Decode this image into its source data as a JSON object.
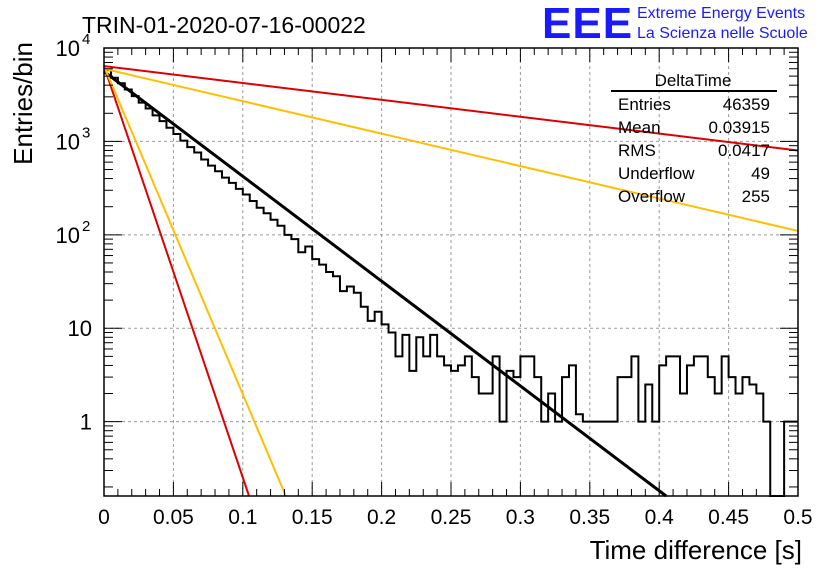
{
  "header": {
    "run_title": "TRIN-01-2020-07-16-00022",
    "logo_text": "EEE",
    "logo_line1": "Extreme Energy Events",
    "logo_line2": "La Scienza nelle Scuole"
  },
  "colors": {
    "logo_blue": "#1a1aff",
    "histogram": "#000000",
    "fit_black": "#000000",
    "fit_red": "#dd0000",
    "fit_yellow": "#ffbf00",
    "grid": "#9a9a9a"
  },
  "stats_box": {
    "title": "DeltaTime",
    "rows": [
      {
        "label": "Entries",
        "value": "46359"
      },
      {
        "label": "Mean",
        "value": "0.03915"
      },
      {
        "label": "RMS",
        "value": "0.0417"
      },
      {
        "label": "Underflow",
        "value": "49"
      },
      {
        "label": "Overflow",
        "value": "255"
      }
    ]
  },
  "chart_data": {
    "type": "line",
    "xlabel": "Time difference [s]",
    "ylabel": "Entries/bin",
    "xlim": [
      0,
      0.5
    ],
    "ylim": [
      0.16,
      10000
    ],
    "yscale": "log",
    "grid": true,
    "x_ticks": [
      "0",
      "0.05",
      "0.1",
      "0.15",
      "0.2",
      "0.25",
      "0.3",
      "0.35",
      "0.4",
      "0.45",
      "0.5"
    ],
    "y_ticks": [
      {
        "value": 1,
        "label": "1",
        "sup": ""
      },
      {
        "value": 10,
        "label": "10",
        "sup": ""
      },
      {
        "value": 100,
        "label": "10",
        "sup": "2"
      },
      {
        "value": 1000,
        "label": "10",
        "sup": "3"
      },
      {
        "value": 10000,
        "label": "10",
        "sup": "4"
      }
    ],
    "histogram": {
      "bin_width": 0.005,
      "x_start": 0,
      "counts": [
        5800,
        4800,
        4200,
        3600,
        3050,
        2600,
        2250,
        1900,
        1650,
        1400,
        1200,
        1020,
        870,
        760,
        640,
        550,
        480,
        410,
        360,
        310,
        270,
        230,
        195,
        170,
        145,
        125,
        100,
        90,
        65,
        75,
        55,
        48,
        40,
        36,
        25,
        28,
        24,
        17,
        12,
        15,
        11,
        9,
        5,
        8.5,
        3.5,
        8,
        5,
        8.5,
        5,
        4,
        3.5,
        4,
        5,
        3,
        2,
        2,
        5,
        1,
        3.5,
        3,
        5,
        5,
        3,
        1,
        2,
        1,
        3,
        4,
        1.2,
        1,
        1,
        1,
        1,
        1,
        3,
        3,
        5,
        1,
        2.5,
        1,
        4,
        5,
        5,
        2,
        4,
        5,
        5,
        3,
        2,
        5,
        3,
        2,
        3,
        2.5,
        2,
        1,
        0.1,
        0.1,
        1,
        1
      ]
    },
    "series": [
      {
        "color": "fit_black",
        "x": [
          0,
          0.405
        ],
        "y": [
          5600,
          0.16
        ]
      },
      {
        "color": "fit_red",
        "x": [
          0,
          0.1045
        ],
        "y": [
          6400,
          0.16
        ]
      },
      {
        "color": "fit_yellow",
        "x": [
          0,
          0.131
        ],
        "y": [
          6400,
          0.16
        ]
      },
      {
        "color": "fit_yellow",
        "x": [
          0,
          0.5
        ],
        "y": [
          6000,
          110
        ]
      },
      {
        "color": "fit_red",
        "x": [
          0,
          0.5
        ],
        "y": [
          6400,
          800
        ]
      }
    ]
  }
}
